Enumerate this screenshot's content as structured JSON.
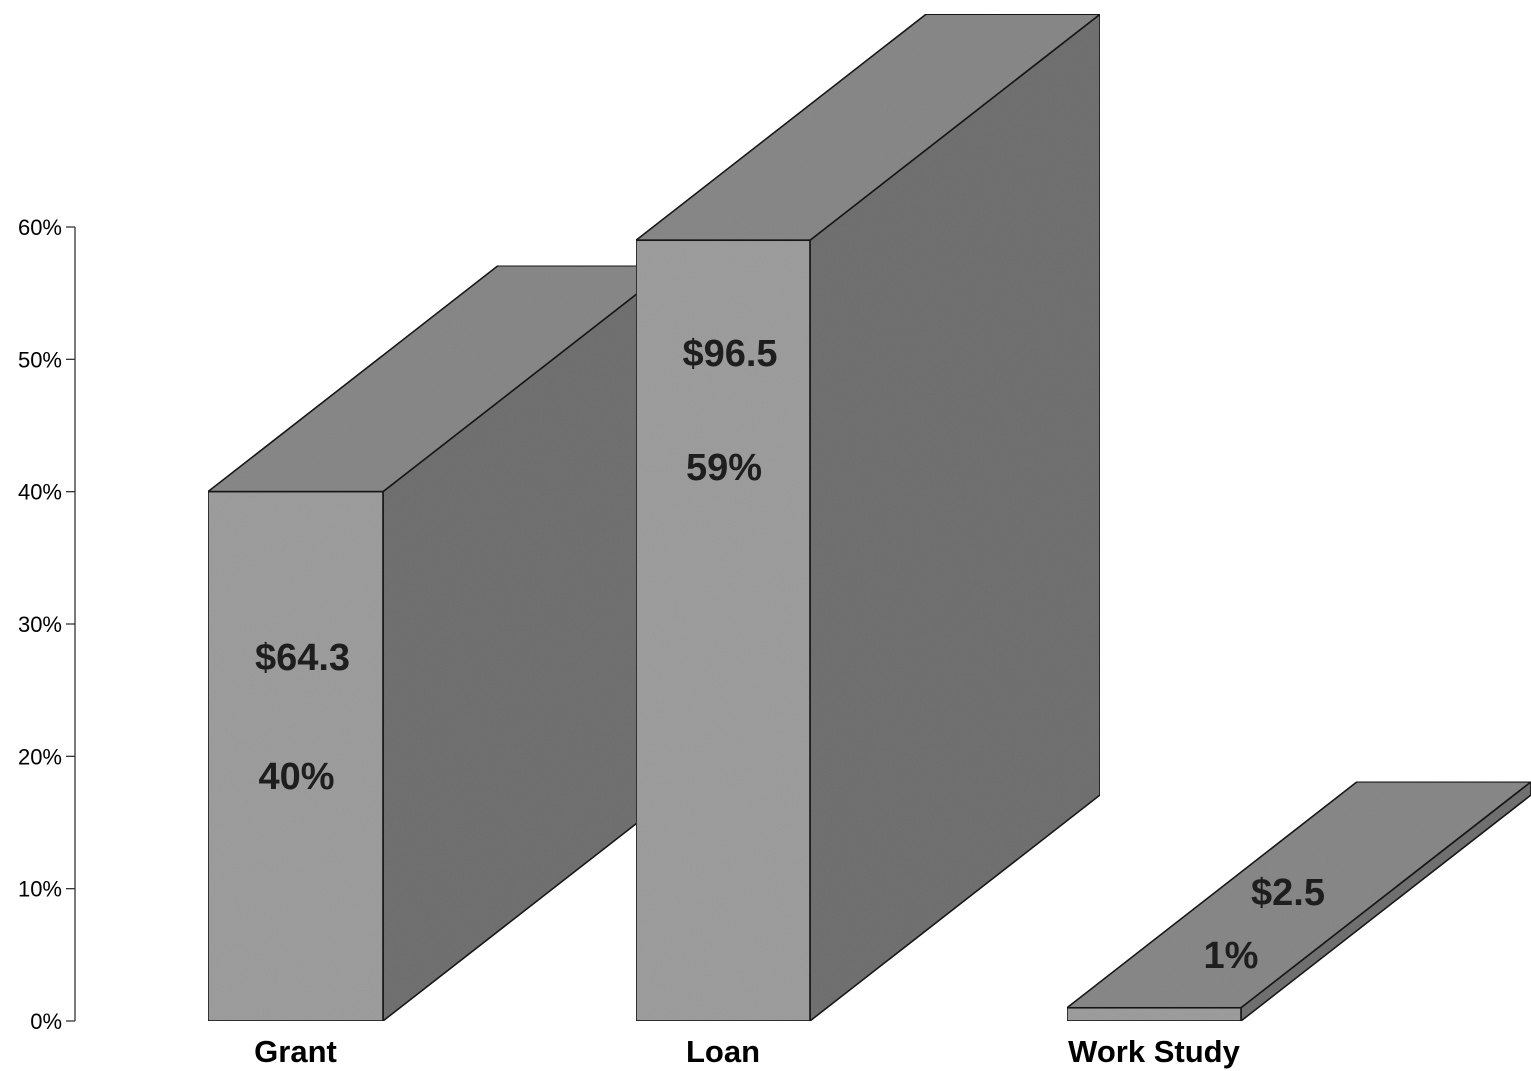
{
  "chart_data": {
    "type": "bar",
    "categories": [
      "Grant",
      "Loan",
      "Work Study"
    ],
    "values": [
      40,
      59,
      1
    ],
    "amounts": [
      "$64.3",
      "$96.5",
      "$2.5"
    ],
    "percent_labels": [
      "40%",
      "59%",
      "1%"
    ],
    "ylim": [
      0,
      60
    ],
    "yticks": [
      "0%",
      "10%",
      "20%",
      "30%",
      "40%",
      "50%",
      "60%"
    ],
    "title": "",
    "xlabel": "",
    "ylabel": "",
    "grid": false,
    "style": "3d-bar",
    "colors": {
      "front": "#a2a2a2",
      "top": "#8c8c8c",
      "side": "#747474",
      "outline": "#1a1a1a",
      "text": "#1e1e1e"
    }
  }
}
